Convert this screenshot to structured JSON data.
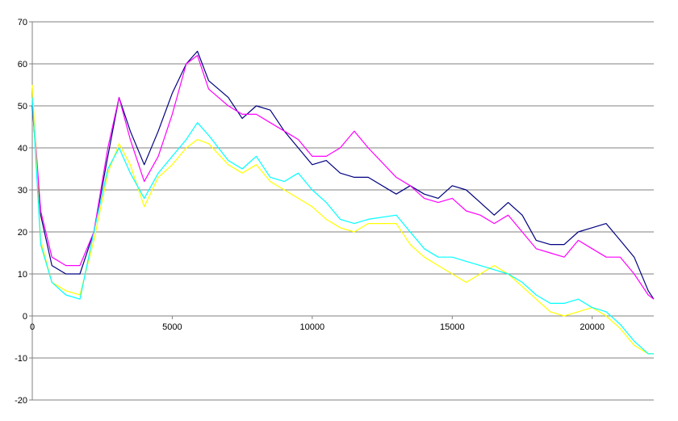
{
  "chart_data": {
    "type": "line",
    "title": "",
    "xlabel": "",
    "ylabel": "",
    "xlim": [
      0,
      22200
    ],
    "ylim": [
      -20,
      70
    ],
    "x_ticks": [
      0,
      5000,
      10000,
      15000,
      20000
    ],
    "y_ticks": [
      -20,
      -10,
      0,
      10,
      20,
      30,
      40,
      50,
      60,
      70
    ],
    "x_tick_labels": [
      "0",
      "5000",
      "10000",
      "15000",
      "20000"
    ],
    "y_tick_labels": [
      "-20",
      "-10",
      "0",
      "10",
      "20",
      "30",
      "40",
      "50",
      "60",
      "70"
    ],
    "grid": "horizontal",
    "legend": "none",
    "series": [
      {
        "color": "#000080",
        "x": [
          0,
          300,
          700,
          1200,
          1700,
          2200,
          2700,
          3100,
          3500,
          4000,
          4500,
          5000,
          5500,
          5900,
          6300,
          7000,
          7500,
          8000,
          8500,
          9000,
          9500,
          10000,
          10500,
          11000,
          11500,
          12000,
          13000,
          13500,
          14000,
          14500,
          15000,
          15500,
          16000,
          16500,
          17000,
          17500,
          18000,
          18500,
          19000,
          19500,
          20000,
          20500,
          21000,
          21500,
          22000,
          22200
        ],
        "y": [
          50,
          24,
          12,
          10,
          10,
          20,
          38,
          52,
          44,
          36,
          44,
          53,
          60,
          63,
          56,
          52,
          47,
          50,
          49,
          44,
          40,
          36,
          37,
          34,
          33,
          33,
          29,
          31,
          29,
          28,
          31,
          30,
          27,
          24,
          27,
          24,
          18,
          17,
          17,
          20,
          21,
          22,
          18,
          14,
          6,
          4
        ]
      },
      {
        "color": "#FF00FF",
        "x": [
          0,
          300,
          700,
          1200,
          1700,
          2200,
          2700,
          3100,
          3500,
          4000,
          4500,
          5000,
          5500,
          5900,
          6300,
          7000,
          7500,
          8000,
          8500,
          9000,
          9500,
          10000,
          10500,
          11000,
          11500,
          12000,
          13000,
          13500,
          14000,
          14500,
          15000,
          15500,
          16000,
          16500,
          17000,
          17500,
          18000,
          18500,
          19000,
          19500,
          20000,
          20500,
          21000,
          21500,
          22000,
          22200
        ],
        "y": [
          52,
          25,
          14,
          12,
          12,
          20,
          40,
          52,
          42,
          32,
          38,
          48,
          60,
          62,
          54,
          50,
          48,
          48,
          46,
          44,
          42,
          38,
          38,
          40,
          44,
          40,
          33,
          31,
          28,
          27,
          28,
          25,
          24,
          22,
          24,
          20,
          16,
          15,
          14,
          18,
          16,
          14,
          14,
          10,
          5,
          4
        ]
      },
      {
        "color": "#FFFF00",
        "x": [
          0,
          300,
          700,
          1200,
          1700,
          2200,
          2700,
          3100,
          3500,
          4000,
          4500,
          5000,
          5500,
          5900,
          6300,
          7000,
          7500,
          8000,
          8500,
          9000,
          9500,
          10000,
          10500,
          11000,
          11500,
          12000,
          13000,
          13500,
          14000,
          14500,
          15000,
          15500,
          16000,
          16500,
          17000,
          17500,
          18000,
          18500,
          19000,
          19500,
          20000,
          20500,
          21000,
          21500,
          22000,
          22200
        ],
        "y": [
          55,
          18,
          8,
          6,
          5,
          18,
          34,
          41,
          36,
          26,
          33,
          36,
          40,
          42,
          41,
          36,
          34,
          36,
          32,
          30,
          28,
          26,
          23,
          21,
          20,
          22,
          22,
          17,
          14,
          12,
          10,
          8,
          10,
          12,
          10,
          7,
          4,
          1,
          0,
          1,
          2,
          0,
          -3,
          -7,
          -9,
          -9
        ]
      },
      {
        "color": "#00FFFF",
        "x": [
          0,
          300,
          700,
          1200,
          1700,
          2200,
          2700,
          3100,
          3500,
          4000,
          4500,
          5000,
          5500,
          5900,
          6300,
          7000,
          7500,
          8000,
          8500,
          9000,
          9500,
          10000,
          10500,
          11000,
          11500,
          12000,
          13000,
          13500,
          14000,
          14500,
          15000,
          15500,
          16000,
          16500,
          17000,
          17500,
          18000,
          18500,
          19000,
          19500,
          20000,
          20500,
          21000,
          21500,
          22000,
          22200
        ],
        "y": [
          52,
          17,
          8,
          5,
          4,
          20,
          35,
          40,
          34,
          28,
          34,
          38,
          42,
          46,
          43,
          37,
          35,
          38,
          33,
          32,
          34,
          30,
          27,
          23,
          22,
          23,
          24,
          20,
          16,
          14,
          14,
          13,
          12,
          11,
          10,
          8,
          5,
          3,
          3,
          4,
          2,
          1,
          -2,
          -6,
          -9,
          -9
        ]
      }
    ]
  }
}
